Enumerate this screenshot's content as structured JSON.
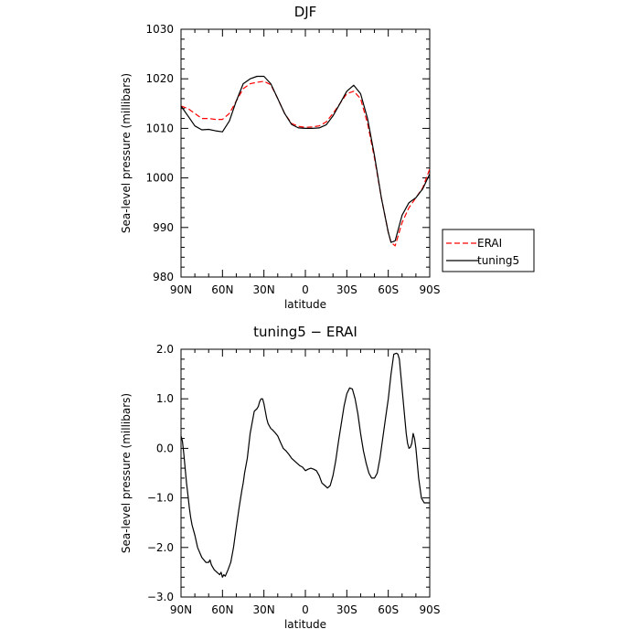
{
  "chart_data": [
    {
      "type": "line",
      "title": "DJF",
      "xlabel": "latitude",
      "ylabel": "Sea-level pressure (millibars)",
      "xlim": [
        90,
        -90
      ],
      "ylim": [
        980,
        1030
      ],
      "xticks": [
        90,
        60,
        30,
        0,
        -30,
        -60,
        -90
      ],
      "xtick_labels": [
        "90N",
        "60N",
        "30N",
        "0",
        "30S",
        "60S",
        "90S"
      ],
      "yticks": [
        980,
        990,
        1000,
        1010,
        1020,
        1030
      ],
      "ytick_labels": [
        "980",
        "990",
        "1000",
        "1010",
        "1020",
        "1030"
      ],
      "legend_position": "right",
      "series": [
        {
          "name": "ERAI",
          "color": "#ff0000",
          "dash": true,
          "x": [
            90,
            85,
            80,
            75,
            70,
            65,
            60,
            55,
            50,
            45,
            40,
            35,
            30,
            25,
            20,
            15,
            10,
            5,
            0,
            -5,
            -10,
            -15,
            -20,
            -25,
            -30,
            -35,
            -40,
            -45,
            -50,
            -55,
            -60,
            -62,
            -65,
            -70,
            -75,
            -80,
            -85,
            -90
          ],
          "y": [
            1014.5,
            1014,
            1013,
            1012,
            1012,
            1011.8,
            1011.8,
            1013,
            1015.5,
            1018,
            1019,
            1019.3,
            1019.5,
            1018.8,
            1016,
            1013,
            1011,
            1010.4,
            1010.2,
            1010.3,
            1010.5,
            1011.3,
            1013,
            1015,
            1017,
            1017.5,
            1016,
            1011,
            1004,
            996,
            989,
            987,
            986.3,
            991,
            994,
            996,
            998,
            1001.8
          ]
        },
        {
          "name": "tuning5",
          "color": "#000000",
          "dash": false,
          "x": [
            90,
            85,
            80,
            75,
            70,
            65,
            60,
            55,
            50,
            45,
            40,
            35,
            30,
            25,
            20,
            15,
            10,
            5,
            0,
            -5,
            -10,
            -15,
            -20,
            -25,
            -30,
            -35,
            -40,
            -45,
            -50,
            -55,
            -60,
            -62,
            -65,
            -70,
            -75,
            -80,
            -85,
            -90
          ],
          "y": [
            1014.5,
            1012.5,
            1010.5,
            1009.7,
            1009.8,
            1009.5,
            1009.3,
            1011.5,
            1015.5,
            1019,
            1020,
            1020.5,
            1020.5,
            1019,
            1016,
            1013,
            1010.8,
            1010.1,
            1010,
            1010,
            1010.1,
            1010.7,
            1012.5,
            1015,
            1017.5,
            1018.7,
            1017,
            1012,
            1004.5,
            996,
            989,
            987,
            987.3,
            992.5,
            995,
            996,
            997.8,
            1000.8
          ]
        }
      ]
    },
    {
      "type": "line",
      "title": "tuning5 − ERAI",
      "xlabel": "latitude",
      "ylabel": "Sea-level pressure (millibars)",
      "xlim": [
        90,
        -90
      ],
      "ylim": [
        -3,
        2
      ],
      "xticks": [
        90,
        60,
        30,
        0,
        -30,
        -60,
        -90
      ],
      "xtick_labels": [
        "90N",
        "60N",
        "30N",
        "0",
        "30S",
        "60S",
        "90S"
      ],
      "yticks": [
        -3,
        -2,
        -1,
        0,
        1,
        2
      ],
      "ytick_labels": [
        "−3.0",
        "−2.0",
        "−1.0",
        "0.0",
        "1.0",
        "2.0"
      ],
      "series": [
        {
          "color": "#000000",
          "x": [
            90,
            89,
            88,
            87,
            86,
            85,
            84,
            83,
            82,
            81,
            80,
            78,
            75,
            72,
            70,
            69,
            68,
            66,
            64,
            62,
            61,
            60,
            59,
            58,
            56,
            54,
            52,
            50,
            48,
            46,
            45,
            44,
            42,
            40,
            39,
            37,
            35,
            34,
            33,
            32,
            31,
            30,
            29,
            28,
            27,
            26,
            25,
            24,
            22,
            20,
            18,
            16,
            14,
            12,
            10,
            8,
            6,
            4,
            2,
            0,
            -2,
            -4,
            -6,
            -8,
            -10,
            -12,
            -14,
            -16,
            -18,
            -20,
            -22,
            -24,
            -26,
            -28,
            -30,
            -32,
            -34,
            -36,
            -38,
            -40,
            -42,
            -44,
            -46,
            -48,
            -50,
            -52,
            -54,
            -56,
            -58,
            -60,
            -62,
            -64,
            -66,
            -67,
            -68,
            -69,
            -70,
            -71,
            -72,
            -73,
            -74,
            -75,
            -76,
            -77,
            -78,
            -79,
            -80,
            -81,
            -82,
            -83,
            -84,
            -85,
            -86,
            -87,
            -88,
            -89,
            -90
          ],
          "y": [
            0.25,
            0.15,
            -0.1,
            -0.4,
            -0.7,
            -0.95,
            -1.2,
            -1.4,
            -1.55,
            -1.65,
            -1.75,
            -2.0,
            -2.2,
            -2.3,
            -2.3,
            -2.25,
            -2.35,
            -2.45,
            -2.5,
            -2.55,
            -2.5,
            -2.6,
            -2.55,
            -2.58,
            -2.45,
            -2.3,
            -2.0,
            -1.6,
            -1.2,
            -0.85,
            -0.7,
            -0.5,
            -0.2,
            0.3,
            0.45,
            0.75,
            0.8,
            0.85,
            0.95,
            1.0,
            1.0,
            0.9,
            0.75,
            0.6,
            0.5,
            0.45,
            0.4,
            0.38,
            0.32,
            0.25,
            0.12,
            0.0,
            -0.05,
            -0.12,
            -0.2,
            -0.25,
            -0.3,
            -0.35,
            -0.38,
            -0.45,
            -0.42,
            -0.4,
            -0.42,
            -0.45,
            -0.55,
            -0.7,
            -0.75,
            -0.8,
            -0.75,
            -0.55,
            -0.25,
            0.15,
            0.5,
            0.85,
            1.1,
            1.22,
            1.2,
            1.0,
            0.7,
            0.3,
            -0.05,
            -0.3,
            -0.5,
            -0.6,
            -0.6,
            -0.5,
            -0.2,
            0.2,
            0.6,
            1.0,
            1.5,
            1.9,
            1.92,
            1.9,
            1.8,
            1.5,
            1.2,
            0.9,
            0.6,
            0.3,
            0.1,
            0.0,
            0.02,
            0.1,
            0.3,
            0.2,
            0.0,
            -0.3,
            -0.6,
            -0.8,
            -1.0,
            -1.05,
            -1.1,
            -1.1,
            -1.1,
            -1.1,
            -1.1
          ]
        }
      ]
    }
  ]
}
